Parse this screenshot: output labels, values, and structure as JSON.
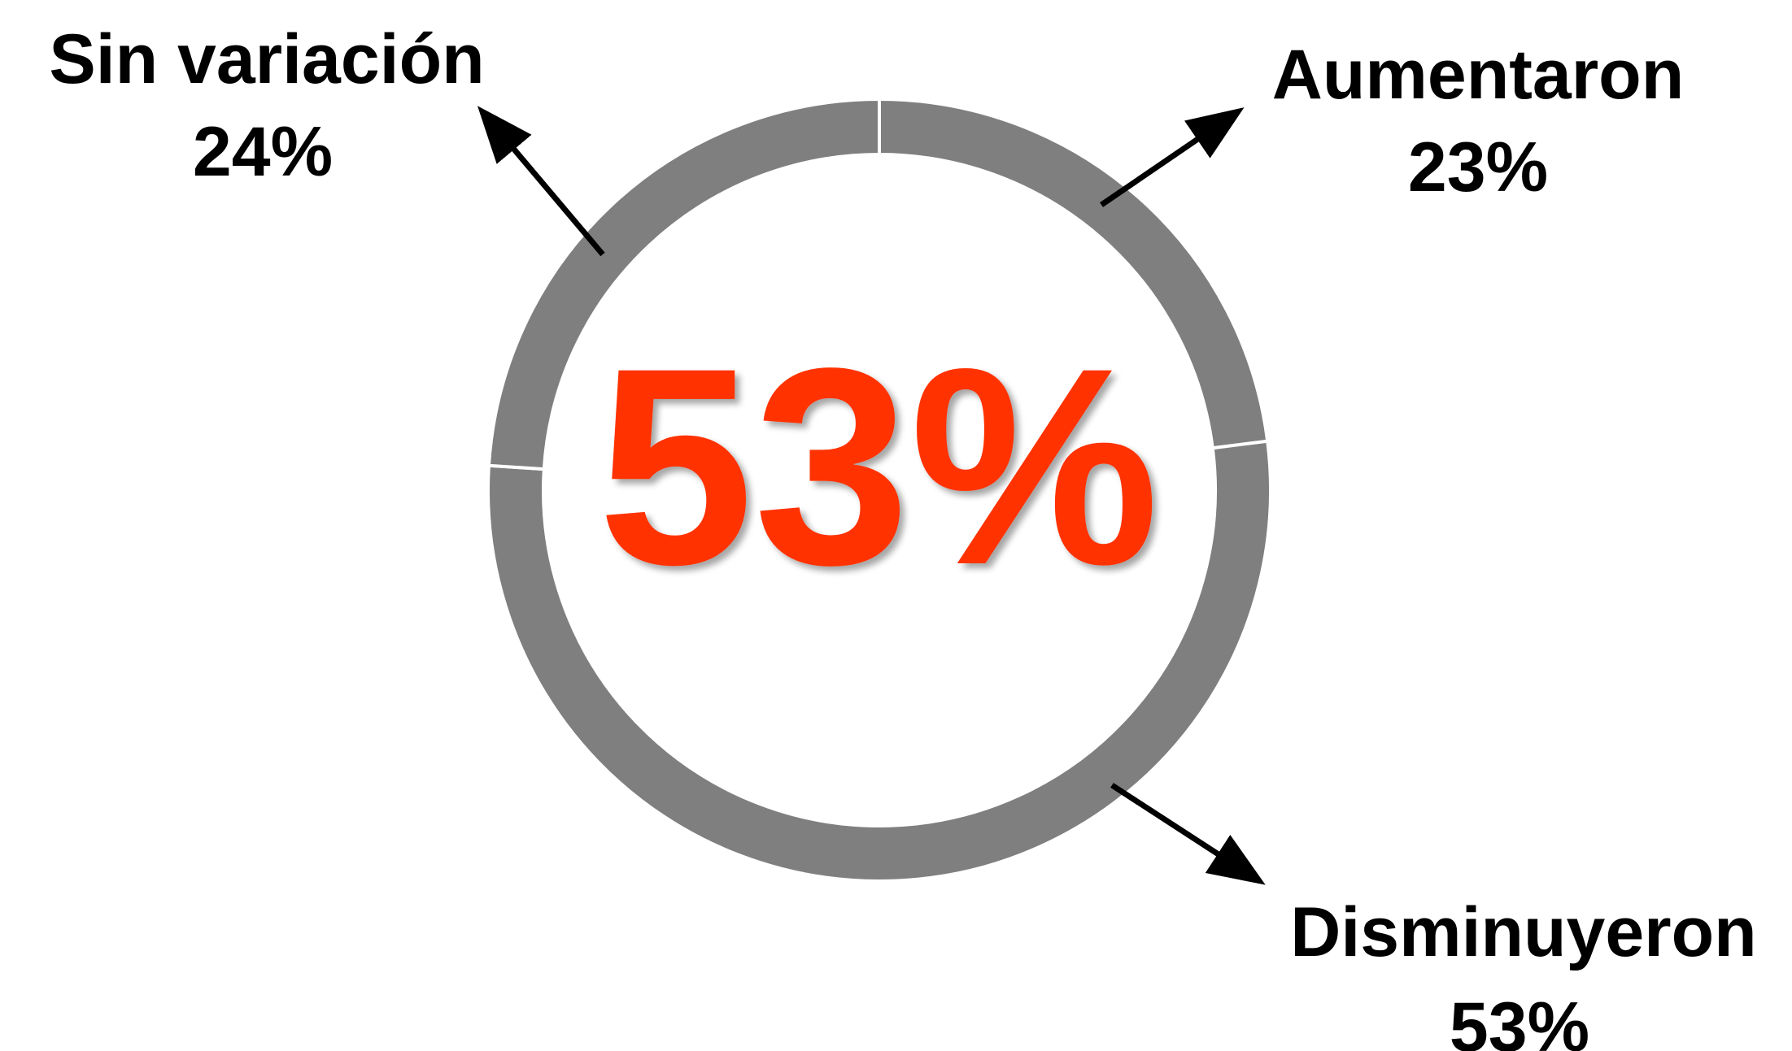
{
  "chart_data": {
    "type": "pie",
    "variant": "donut",
    "center_label": "53%",
    "categories": [
      "Aumentaron",
      "Disminuyeron",
      "Sin variación"
    ],
    "values": [
      23,
      53,
      24
    ],
    "value_labels": [
      "23%",
      "53%",
      "24%"
    ],
    "legend": "none"
  },
  "colors": {
    "ring": "#7f7f7f",
    "separator": "#ffffff",
    "center_text": "#ff3300",
    "label_text": "#000000",
    "arrow": "#000000",
    "background": "#ffffff"
  }
}
